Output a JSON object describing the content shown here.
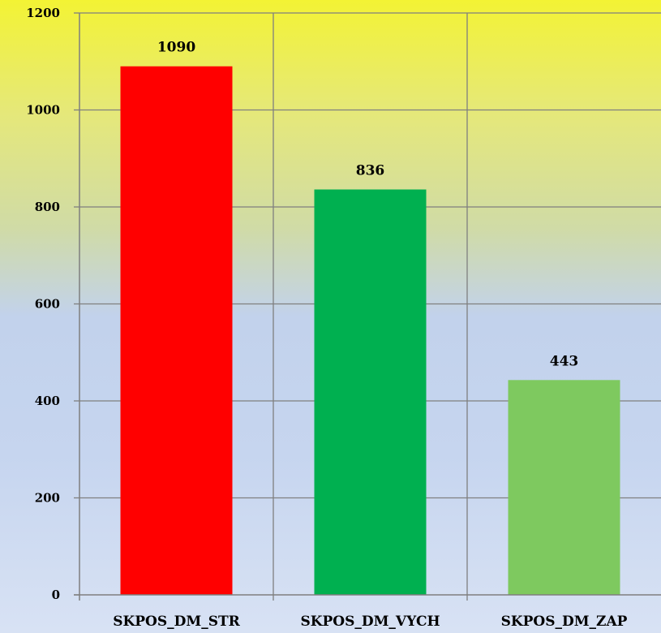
{
  "chart_data": {
    "type": "bar",
    "categories": [
      "SKPOS_DM_STR",
      "SKPOS_DM_VYCH",
      "SKPOS_DM_ZAP"
    ],
    "values": [
      1090,
      836,
      443
    ],
    "data_labels": [
      "1090",
      "836",
      "443"
    ],
    "bar_colors": [
      "#ff0000",
      "#00b050",
      "#7ec95f"
    ],
    "ylim": [
      0,
      1200
    ],
    "yticks": [
      0,
      200,
      400,
      600,
      800,
      1000,
      1200
    ],
    "ytick_labels": [
      "0",
      "200",
      "400",
      "600",
      "800",
      "1000",
      "1200"
    ],
    "grid": true,
    "legend": "none",
    "title": "",
    "xlabel": "",
    "ylabel": ""
  }
}
